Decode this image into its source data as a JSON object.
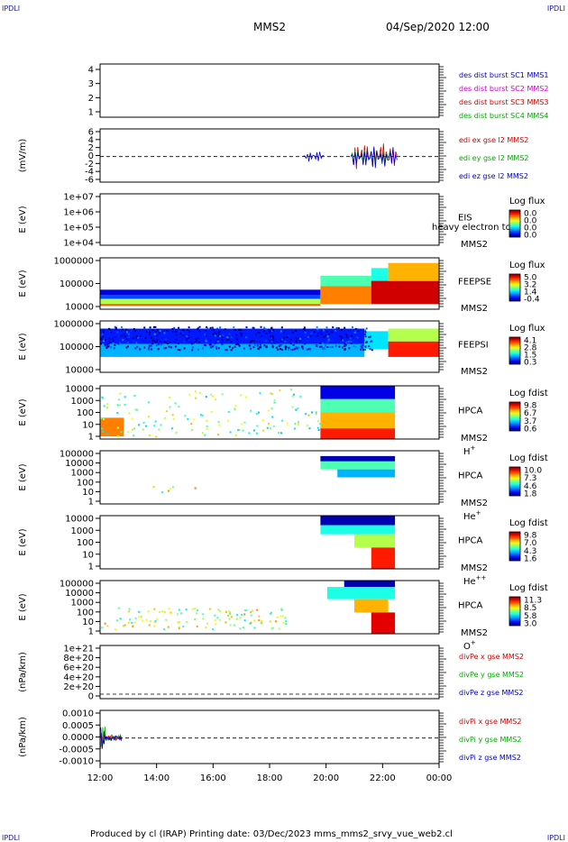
{
  "corners": {
    "tl": "IPDLI",
    "tr": "IPDLI",
    "bl": "IPDLI",
    "br": "IPDLI"
  },
  "header": {
    "spacecraft": "MMS2",
    "datetime": "04/Sep/2020 12:00"
  },
  "footer": {
    "text": "Produced by cl (IRAP)   Printing date: 03/Dec/2023   mms_mms2_srvy_vue_web2.cl"
  },
  "chart_data": [
    {
      "id": "p1",
      "type": "line",
      "ylabel": "",
      "yticks": [
        "1",
        "2",
        "3",
        "4"
      ],
      "series": [
        {
          "name": "des dist burst SC1 MMS1",
          "color": "#0000cc"
        },
        {
          "name": "des dist burst SC2 MMS2",
          "color": "#cc00cc"
        },
        {
          "name": "des dist burst SC3 MMS3",
          "color": "#cc0000"
        },
        {
          "name": "des dist burst SC4 MMS4",
          "color": "#00aa00"
        }
      ]
    },
    {
      "id": "p2",
      "type": "line",
      "ylabel": "(mV/m)",
      "yticks": [
        "6",
        "4",
        "2",
        "0",
        "-2",
        "-4",
        "-6"
      ],
      "series": [
        {
          "name": "edi ex gse l2 MMS2",
          "color": "#cc0000"
        },
        {
          "name": "edi ey gse l2 MMS2",
          "color": "#00aa00"
        },
        {
          "name": "edi ez gse l2 MMS2",
          "color": "#0000cc"
        }
      ]
    },
    {
      "id": "p3",
      "type": "heatmap",
      "ylabel": "E (eV)",
      "yticks": [
        "1e+07",
        "1e+06",
        "1e+05",
        "1e+04"
      ],
      "side1": "EIS",
      "side2": "MMS2",
      "overlay": "heavy electron to",
      "cb_title": "Log flux",
      "cb_ticks": [
        "0.0",
        "0.0",
        "0.0",
        "0.0"
      ]
    },
    {
      "id": "p4",
      "type": "heatmap",
      "ylabel": "E (eV)",
      "yticks": [
        "1000000",
        "100000",
        "10000"
      ],
      "side1": "FEEPSE",
      "side2": "MMS2",
      "cb_title": "Log flux",
      "cb_ticks": [
        "5.0",
        "3.2",
        "1.4",
        "-0.4"
      ]
    },
    {
      "id": "p5",
      "type": "heatmap",
      "ylabel": "E (eV)",
      "yticks": [
        "1000000",
        "100000",
        "10000"
      ],
      "side1": "FEEPSI",
      "side2": "MMS2",
      "cb_title": "Log flux",
      "cb_ticks": [
        "4.1",
        "2.8",
        "1.5",
        "0.3"
      ]
    },
    {
      "id": "p6",
      "type": "heatmap",
      "ylabel": "E (eV)",
      "yticks": [
        "10000",
        "1000",
        "100",
        "10",
        "1"
      ],
      "side1": "HPCA",
      "side2": "MMS2",
      "species": "H",
      "sup": "+",
      "cb_title": "Log fdist",
      "cb_ticks": [
        "9.8",
        "6.7",
        "3.7",
        "0.6"
      ]
    },
    {
      "id": "p7",
      "type": "heatmap",
      "ylabel": "E (eV)",
      "yticks": [
        "100000",
        "10000",
        "1000",
        "100",
        "10",
        "1"
      ],
      "side1": "HPCA",
      "side2": "MMS2",
      "species": "He",
      "sup": "+",
      "cb_title": "Log fdist",
      "cb_ticks": [
        "10.0",
        "7.3",
        "4.6",
        "1.8"
      ]
    },
    {
      "id": "p8",
      "type": "heatmap",
      "ylabel": "E (eV)",
      "yticks": [
        "10000",
        "1000",
        "100",
        "10",
        "1"
      ],
      "side1": "HPCA",
      "side2": "MMS2",
      "species": "He",
      "sup": "++",
      "cb_title": "Log fdist",
      "cb_ticks": [
        "9.8",
        "7.0",
        "4.3",
        "1.6"
      ]
    },
    {
      "id": "p9",
      "type": "heatmap",
      "ylabel": "E (eV)",
      "yticks": [
        "100000",
        "10000",
        "1000",
        "100",
        "10",
        "1"
      ],
      "side1": "HPCA",
      "side2": "MMS2",
      "species": "O",
      "sup": "+",
      "cb_title": "Log fdist",
      "cb_ticks": [
        "11.3",
        "8.5",
        "5.8",
        "3.0"
      ]
    },
    {
      "id": "p10",
      "type": "line",
      "ylabel": "(nPa/km)",
      "yticks": [
        "1e+21",
        "8e+20",
        "6e+20",
        "4e+20",
        "2e+20",
        "0"
      ],
      "series": [
        {
          "name": "divPe x gse MMS2",
          "color": "#cc0000"
        },
        {
          "name": "divPe y gse MMS2",
          "color": "#00aa00"
        },
        {
          "name": "divPe z gse MMS2",
          "color": "#0000cc"
        }
      ]
    },
    {
      "id": "p11",
      "type": "line",
      "ylabel": "(nPa/km)",
      "yticks": [
        "0.0010",
        "0.0005",
        "0.0000",
        "-0.0005",
        "-0.0010"
      ],
      "series": [
        {
          "name": "divPi x gse MMS2",
          "color": "#cc0000"
        },
        {
          "name": "divPi y gse MMS2",
          "color": "#00aa00"
        },
        {
          "name": "divPi z gse MMS2",
          "color": "#0000cc"
        }
      ]
    }
  ],
  "xaxis": {
    "ticks": [
      "12:00",
      "14:00",
      "16:00",
      "18:00",
      "20:00",
      "22:00",
      "00:00"
    ]
  }
}
